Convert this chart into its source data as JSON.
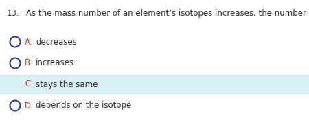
{
  "question_number": "13.",
  "question_text": "As the mass number of an element’s isotopes increases, the number of protons _____.",
  "options": [
    {
      "letter": "A.",
      "text": "decreases",
      "selected": false
    },
    {
      "letter": "B.",
      "text": "increases",
      "selected": false
    },
    {
      "letter": "C.",
      "text": "stays the same",
      "selected": true
    },
    {
      "letter": "D.",
      "text": "depends on the isotope",
      "selected": false
    }
  ],
  "bg_color": "#ffffff",
  "highlight_color": "#daeef8",
  "text_color_question": "#2b2b2b",
  "letter_color": "#c0392b",
  "circle_edge_color": "#2e3a8c",
  "selected_fill": "#2e3a8c",
  "font_size_question": 8.5,
  "font_size_option": 8.5,
  "fig_width": 4.5,
  "fig_height": 1.88,
  "dpi": 100
}
